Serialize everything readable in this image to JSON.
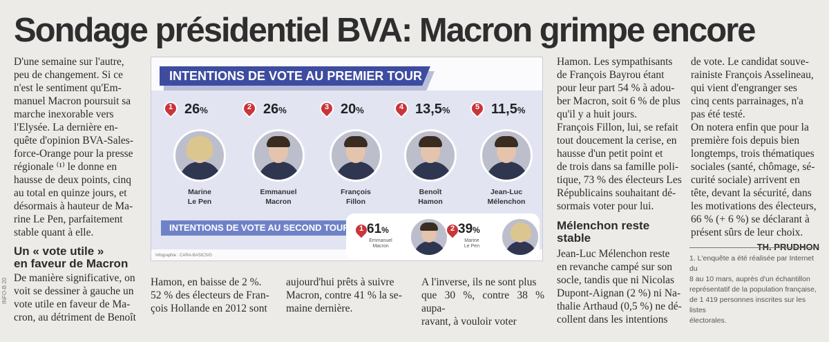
{
  "headline": "Sondage présidentiel BVA: Macron grimpe encore",
  "intro_lines": [
    "D'une semaine sur l'autre,",
    "peu de changement. Si ce",
    "n'est le sentiment qu'Em-",
    "manuel Macron poursuit sa",
    "marche inexorable vers",
    "l'Elysée. La dernière en-",
    "quête d'opinion BVA-Sales-",
    "force-Orange pour la presse",
    "régionale ⁽¹⁾ le donne en",
    "hausse de deux points, cinq",
    "au total en quinze jours, et",
    "désormais à hauteur de Ma-",
    "rine Le Pen, parfaitement",
    "stable quant à elle."
  ],
  "subhead1_lines": [
    "Un « vote utile »",
    "en faveur de Macron"
  ],
  "col1_bottom_lines": [
    "De manière significative, on",
    "voit se dessiner à gauche un",
    "vote utile en faveur de Ma-",
    "cron, au détriment de Benoît"
  ],
  "col2_lines": [
    "Hamon, en baisse de 2 %.",
    "52 % des électeurs de Fran-",
    "çois Hollande en 2012 sont"
  ],
  "col3_lines": [
    "aujourd'hui prêts à suivre",
    "Macron, contre 41 % la se-",
    "maine dernière."
  ],
  "col4_lines": [
    "A l'inverse, ils ne sont plus",
    "que 30 %, contre 38 % aupa-",
    "ravant, à vouloir voter"
  ],
  "col5_top_lines": [
    "Hamon. Les sympathisants",
    "de François Bayrou étant",
    "pour leur part 54 % à adou-",
    "ber Macron, soit 6 % de plus",
    "qu'il y a huit jours.",
    "François Fillon, lui, se refait",
    "tout doucement la cerise, en",
    "hausse d'un petit point et",
    "de trois dans sa famille poli-",
    "tique, 73 % des électeurs Les",
    "Républicains souhaitant dé-",
    "sormais voter pour lui."
  ],
  "subhead2_lines": [
    "Mélenchon reste",
    "stable"
  ],
  "col5_bottom_lines": [
    "Jean-Luc Mélenchon reste",
    "en revanche campé sur son",
    "socle, tandis que ni Nicolas",
    "Dupont-Aignan (2 %) ni Na-",
    "thalie Arthaud (0,5 %) ne dé-",
    "collent dans les intentions"
  ],
  "col6_lines": [
    "de vote. Le candidat souve-",
    "rainiste François Asselineau,",
    "qui vient d'engranger ses",
    "cinq cents parrainages, n'a",
    "pas été testé.",
    "On notera enfin que pour la",
    "première fois depuis bien",
    "longtemps, trois thématiques",
    "sociales (santé, chômage, sé-",
    "curité sociale) arrivent en",
    "tête, devant la sécurité, dans",
    "les motivations des électeurs,",
    "66 % (+ 6 %) se déclarant à",
    "présent sûrs de leur choix."
  ],
  "signature": "TH. PRUDHON",
  "footnote_lines": [
    "1. L'enquête a été réalisée par Internet du",
    "8 au 10 mars, auprès d'un échantillon",
    "représentatif de la population française,",
    "de 1 419 personnes inscrites sur les listes",
    "électorales."
  ],
  "margin_note": "INFO-B 20",
  "infographic": {
    "title_round1": "INTENTIONS DE VOTE AU PREMIER TOUR",
    "title_round2": "INTENTIONS DE VOTE AU SECOND TOUR",
    "credit": "Infographie : CARA-BASICS/G",
    "accent_color": "#3e4ca0",
    "pin_color": "#c9353b",
    "round1": [
      {
        "rank": "1",
        "value": "26",
        "unit": "%",
        "name_line1": "Marine",
        "name_line2": "Le Pen"
      },
      {
        "rank": "2",
        "value": "26",
        "unit": "%",
        "name_line1": "Emmanuel",
        "name_line2": "Macron"
      },
      {
        "rank": "3",
        "value": "20",
        "unit": "%",
        "name_line1": "François",
        "name_line2": "Fillon"
      },
      {
        "rank": "4",
        "value": "13,5",
        "unit": "%",
        "name_line1": "Benoît",
        "name_line2": "Hamon"
      },
      {
        "rank": "5",
        "value": "11,5",
        "unit": "%",
        "name_line1": "Jean-Luc",
        "name_line2": "Mélenchon"
      }
    ],
    "round2": [
      {
        "rank": "1",
        "value": "61",
        "unit": "%",
        "name_line1": "Emmanuel",
        "name_line2": "Macron"
      },
      {
        "rank": "2",
        "value": "39",
        "unit": "%",
        "name_line1": "Marine",
        "name_line2": "Le Pen"
      }
    ]
  }
}
